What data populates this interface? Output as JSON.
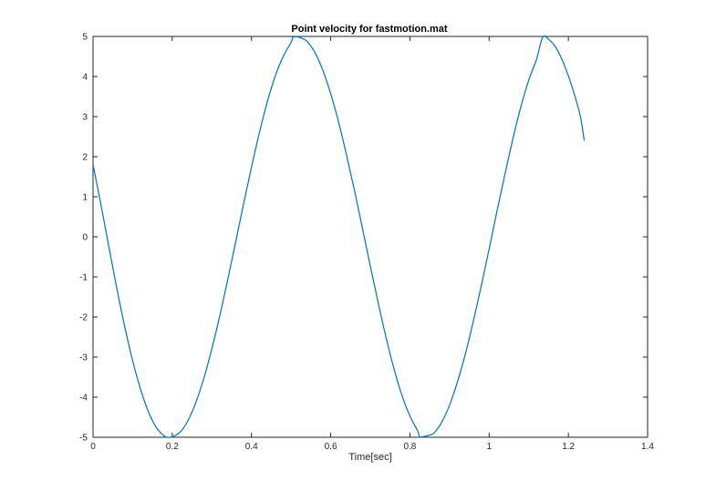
{
  "chart_data": {
    "type": "line",
    "title": "Point velocity for fastmotion.mat",
    "xlabel": "Time[sec]",
    "ylabel": "",
    "xlim": [
      0,
      1.4
    ],
    "ylim": [
      -5,
      5
    ],
    "xticks": [
      "0",
      "0.2",
      "0.4",
      "0.6",
      "0.8",
      "1",
      "1.2",
      "1.4"
    ],
    "yticks": [
      "-5",
      "-4",
      "-3",
      "-2",
      "-1",
      "0",
      "1",
      "2",
      "3",
      "4",
      "5"
    ],
    "grid": false,
    "legend": "none",
    "series": [
      {
        "color": "#0072BD",
        "points": [
          [
            0.0,
            1.8
          ],
          [
            0.02,
            0.8
          ],
          [
            0.04,
            -0.25
          ],
          [
            0.06,
            -1.28
          ],
          [
            0.08,
            -2.24
          ],
          [
            0.1,
            -3.09
          ],
          [
            0.12,
            -3.8
          ],
          [
            0.14,
            -4.37
          ],
          [
            0.16,
            -4.76
          ],
          [
            0.18,
            -4.97
          ],
          [
            0.19,
            -5.0
          ],
          [
            0.2,
            -4.99
          ],
          [
            0.22,
            -4.87
          ],
          [
            0.24,
            -4.58
          ],
          [
            0.26,
            -4.12
          ],
          [
            0.28,
            -3.52
          ],
          [
            0.3,
            -2.79
          ],
          [
            0.32,
            -1.97
          ],
          [
            0.34,
            -1.07
          ],
          [
            0.36,
            -0.13
          ],
          [
            0.38,
            0.82
          ],
          [
            0.4,
            1.74
          ],
          [
            0.42,
            2.6
          ],
          [
            0.44,
            3.37
          ],
          [
            0.46,
            4.01
          ],
          [
            0.48,
            4.5
          ],
          [
            0.5,
            4.85
          ],
          [
            0.505,
            4.98
          ],
          [
            0.52,
            4.98
          ],
          [
            0.54,
            4.88
          ],
          [
            0.56,
            4.6
          ],
          [
            0.58,
            4.16
          ],
          [
            0.6,
            3.57
          ],
          [
            0.62,
            2.86
          ],
          [
            0.64,
            2.04
          ],
          [
            0.66,
            1.16
          ],
          [
            0.68,
            0.22
          ],
          [
            0.7,
            -0.73
          ],
          [
            0.72,
            -1.65
          ],
          [
            0.74,
            -2.52
          ],
          [
            0.76,
            -3.3
          ],
          [
            0.78,
            -3.96
          ],
          [
            0.8,
            -4.47
          ],
          [
            0.82,
            -4.85
          ],
          [
            0.825,
            -4.99
          ],
          [
            0.84,
            -4.97
          ],
          [
            0.86,
            -4.9
          ],
          [
            0.88,
            -4.63
          ],
          [
            0.9,
            -4.2
          ],
          [
            0.92,
            -3.62
          ],
          [
            0.94,
            -2.92
          ],
          [
            0.96,
            -2.11
          ],
          [
            0.98,
            -1.23
          ],
          [
            1.0,
            -0.3
          ],
          [
            1.02,
            0.65
          ],
          [
            1.04,
            1.57
          ],
          [
            1.06,
            2.45
          ],
          [
            1.08,
            3.24
          ],
          [
            1.1,
            3.91
          ],
          [
            1.12,
            4.44
          ],
          [
            1.135,
            4.98
          ],
          [
            1.15,
            4.93
          ],
          [
            1.17,
            4.7
          ],
          [
            1.19,
            4.28
          ],
          [
            1.21,
            3.72
          ],
          [
            1.23,
            3.02
          ],
          [
            1.24,
            2.4
          ]
        ]
      }
    ]
  }
}
